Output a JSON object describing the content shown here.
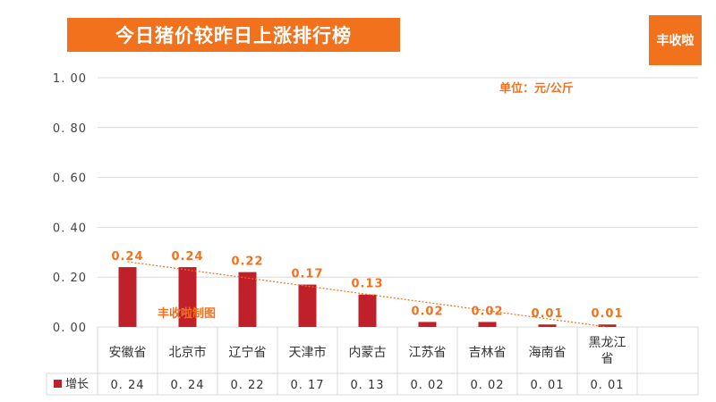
{
  "header": {
    "title": "今日猪价较昨日上涨排行榜",
    "logo_text": "丰收啦"
  },
  "chart_data": {
    "type": "bar",
    "title": "今日猪价较昨日上涨排行榜",
    "unit_label": "单位：元/公斤",
    "watermark": "丰收啦制图",
    "categories": [
      [
        "安徽省"
      ],
      [
        "北京市"
      ],
      [
        "辽宁省"
      ],
      [
        "天津市"
      ],
      [
        "内蒙古"
      ],
      [
        "江苏省"
      ],
      [
        "吉林省"
      ],
      [
        "海南省"
      ],
      [
        "黑龙江",
        "省"
      ]
    ],
    "series": [
      {
        "name": "增长",
        "values": [
          0.24,
          0.24,
          0.22,
          0.17,
          0.13,
          0.02,
          0.02,
          0.01,
          0.01
        ],
        "labels": [
          "0.24",
          "0.24",
          "0.22",
          "0.17",
          "0.13",
          "0.02",
          "0.02",
          "0.01",
          "0.01"
        ],
        "table_labels": [
          "0. 24",
          "0. 24",
          "0. 22",
          "0. 17",
          "0. 13",
          "0. 02",
          "0. 02",
          "0. 01",
          "0. 01"
        ],
        "color": "#c0202a"
      }
    ],
    "ylim": [
      0,
      1.0
    ],
    "yticks": [
      0.0,
      0.2,
      0.4,
      0.6,
      0.8,
      1.0
    ],
    "ytick_labels": [
      "0. 00",
      "0. 20",
      "0. 40",
      "0. 60",
      "0. 80",
      "1. 00"
    ],
    "trendline": "linear",
    "trendline_color": "#f2711c",
    "grid": true,
    "data_table": true
  }
}
